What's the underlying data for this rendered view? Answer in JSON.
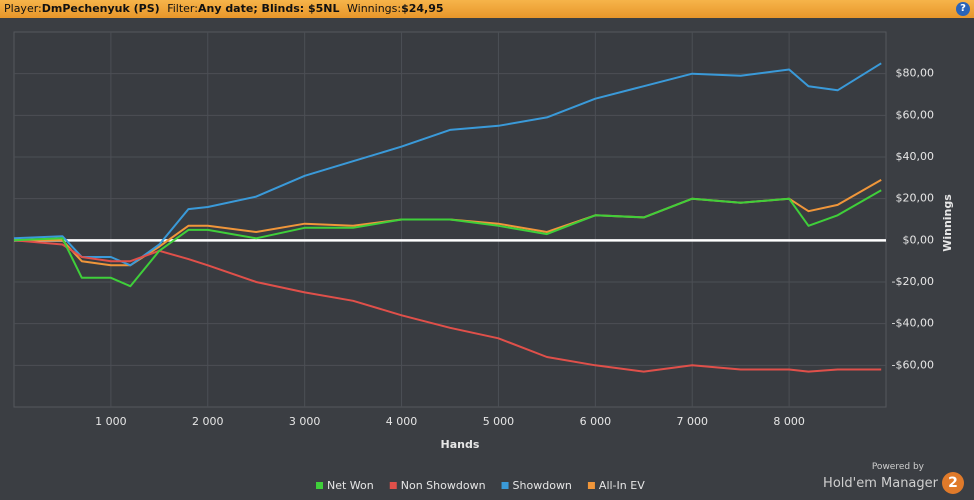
{
  "header": {
    "player_label": "Player:",
    "player": "DmPechenyuk (PS)",
    "filter_label": "Filter:",
    "filter": "Any date; Blinds: $5NL",
    "winnings_label": "Winnings:",
    "winnings": "$24,95",
    "help": "?"
  },
  "branding": {
    "powered_by": "Powered by",
    "product": "Hold'em Manager",
    "version": "2"
  },
  "chart_data": {
    "type": "line",
    "xlabel": "Hands",
    "ylabel": "Winnings",
    "x": [
      0,
      500,
      700,
      1000,
      1200,
      1500,
      1800,
      2000,
      2500,
      3000,
      3500,
      4000,
      4500,
      5000,
      5500,
      6000,
      6500,
      7000,
      7500,
      8000,
      8200,
      8500,
      8950
    ],
    "series": [
      {
        "name": "Net Won",
        "color": "#3fcf3a",
        "values": [
          0,
          1,
          -18,
          -18,
          -22,
          -5,
          5,
          5,
          1,
          6,
          6,
          10,
          10,
          7,
          3,
          12,
          11,
          20,
          18,
          20,
          7,
          12,
          24
        ]
      },
      {
        "name": "Non Showdown",
        "color": "#e0504a",
        "values": [
          0,
          -2,
          -8,
          -10,
          -10,
          -5,
          -9,
          -12,
          -20,
          -25,
          -29,
          -36,
          -42,
          -47,
          -56,
          -60,
          -63,
          -60,
          -62,
          -62,
          -63,
          -62,
          -62
        ]
      },
      {
        "name": "Showdown",
        "color": "#3a9ad9",
        "values": [
          1,
          2,
          -8,
          -8,
          -12,
          -2,
          15,
          16,
          21,
          31,
          38,
          45,
          53,
          55,
          59,
          68,
          74,
          80,
          79,
          82,
          74,
          72,
          85
        ]
      },
      {
        "name": "All-In EV",
        "color": "#f0963a",
        "values": [
          0,
          0,
          -10,
          -12,
          -12,
          -3,
          7,
          7,
          4,
          8,
          7,
          10,
          10,
          8,
          4,
          12,
          11,
          20,
          18,
          20,
          14,
          17,
          29
        ]
      }
    ],
    "xlim": [
      0,
      9000
    ],
    "xticks": [
      {
        "value": 1000,
        "label": "1 000"
      },
      {
        "value": 2000,
        "label": "2 000"
      },
      {
        "value": 3000,
        "label": "3 000"
      },
      {
        "value": 4000,
        "label": "4 000"
      },
      {
        "value": 5000,
        "label": "5 000"
      },
      {
        "value": 6000,
        "label": "6 000"
      },
      {
        "value": 7000,
        "label": "7 000"
      },
      {
        "value": 8000,
        "label": "8 000"
      }
    ],
    "ylim": [
      -80,
      100
    ],
    "yticks": [
      {
        "value": -60,
        "label": "-$60,00"
      },
      {
        "value": -40,
        "label": "-$40,00"
      },
      {
        "value": -20,
        "label": "-$20,00"
      },
      {
        "value": 0,
        "label": "$0,00"
      },
      {
        "value": 20,
        "label": "$20,00"
      },
      {
        "value": 40,
        "label": "$40,00"
      },
      {
        "value": 60,
        "label": "$60,00"
      },
      {
        "value": 80,
        "label": "$80,00"
      }
    ],
    "grid": true
  }
}
